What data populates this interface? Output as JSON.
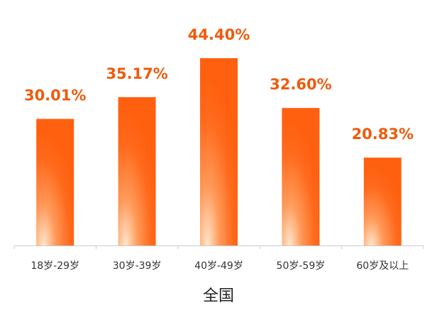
{
  "chart_data": {
    "type": "bar",
    "title": "全国",
    "categories": [
      "18岁-29岁",
      "30岁-39岁",
      "40岁-49岁",
      "50岁-59岁",
      "60岁及以上"
    ],
    "values": [
      30.01,
      35.17,
      44.4,
      32.6,
      20.83
    ],
    "value_labels": [
      "30.01%",
      "35.17%",
      "44.40%",
      "32.60%",
      "20.83%"
    ],
    "color": "#ff6010"
  }
}
